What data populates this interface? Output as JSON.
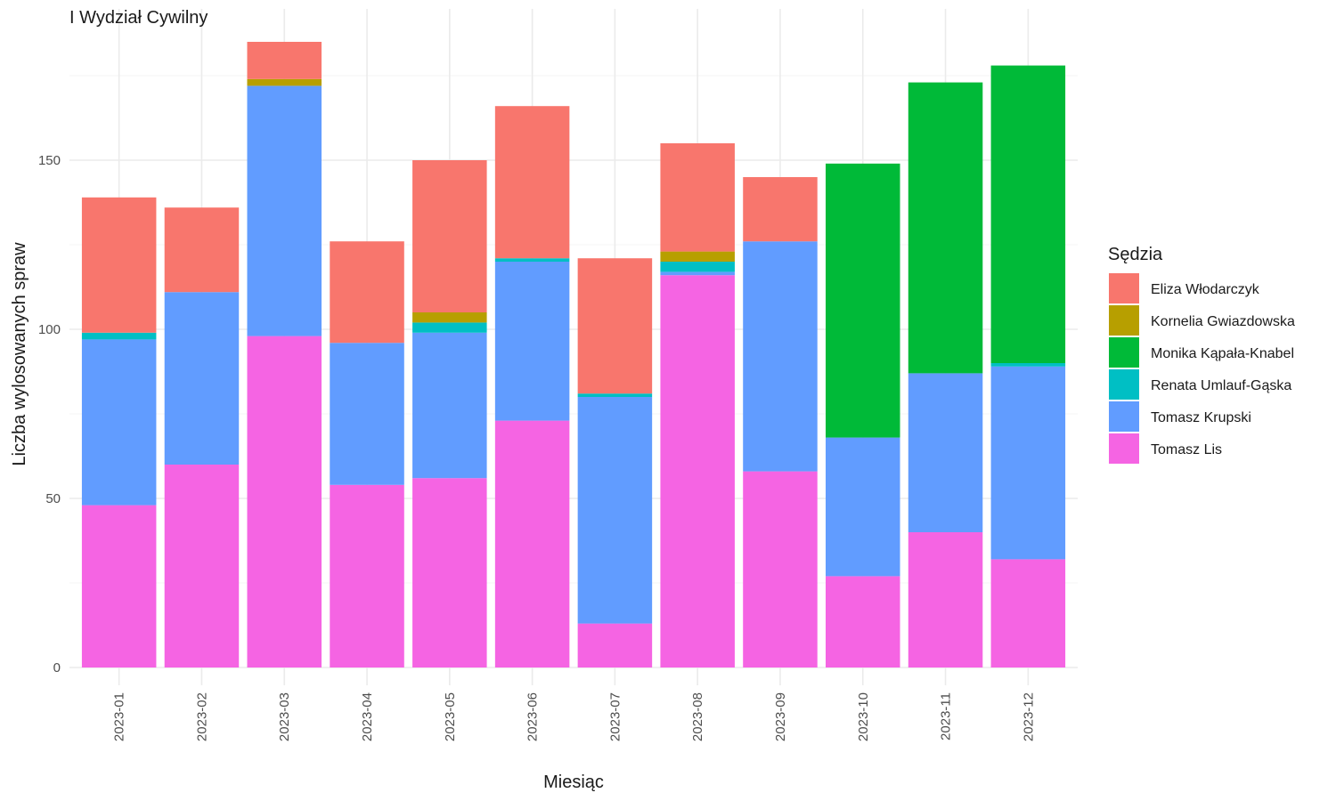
{
  "chart_data": {
    "type": "bar",
    "stacked": true,
    "title": "I Wydział Cywilny",
    "xlabel": "Miesiąc",
    "ylabel": "Liczba wylosowanych spraw",
    "ylim": [
      0,
      185
    ],
    "yticks": [
      0,
      50,
      100,
      150
    ],
    "grid": true,
    "legend_position": "right",
    "legend_title": "Sędzia",
    "categories": [
      "2023-01",
      "2023-02",
      "2023-03",
      "2023-04",
      "2023-05",
      "2023-06",
      "2023-07",
      "2023-08",
      "2023-09",
      "2023-10",
      "2023-11",
      "2023-12"
    ],
    "series": [
      {
        "name": "Tomasz Lis",
        "color": "#F564E3",
        "values": [
          48,
          60,
          98,
          54,
          56,
          73,
          13,
          116,
          58,
          27,
          40,
          32
        ]
      },
      {
        "name": "Tomasz Krupski",
        "color": "#619CFF",
        "values": [
          49,
          51,
          74,
          42,
          43,
          47,
          67,
          1,
          68,
          41,
          47,
          57
        ]
      },
      {
        "name": "Renata Umlauf-Gąska",
        "color": "#00BFC4",
        "values": [
          2,
          0,
          0,
          0,
          3,
          1,
          1,
          3,
          0,
          0,
          0,
          1
        ]
      },
      {
        "name": "Monika Kąpała-Knabel",
        "color": "#00BA38",
        "values": [
          0,
          0,
          0,
          0,
          0,
          0,
          0,
          0,
          0,
          81,
          86,
          88
        ]
      },
      {
        "name": "Kornelia Gwiazdowska",
        "color": "#B79F00",
        "values": [
          0,
          0,
          2,
          0,
          3,
          0,
          0,
          3,
          0,
          0,
          0,
          0
        ]
      },
      {
        "name": "Eliza Włodarczyk",
        "color": "#F8766D",
        "values": [
          40,
          25,
          11,
          30,
          45,
          45,
          40,
          32,
          19,
          0,
          0,
          0
        ]
      }
    ],
    "legend_order": [
      "Eliza Włodarczyk",
      "Kornelia Gwiazdowska",
      "Monika Kąpała-Knabel",
      "Renata Umlauf-Gąska",
      "Tomasz Krupski",
      "Tomasz Lis"
    ]
  }
}
